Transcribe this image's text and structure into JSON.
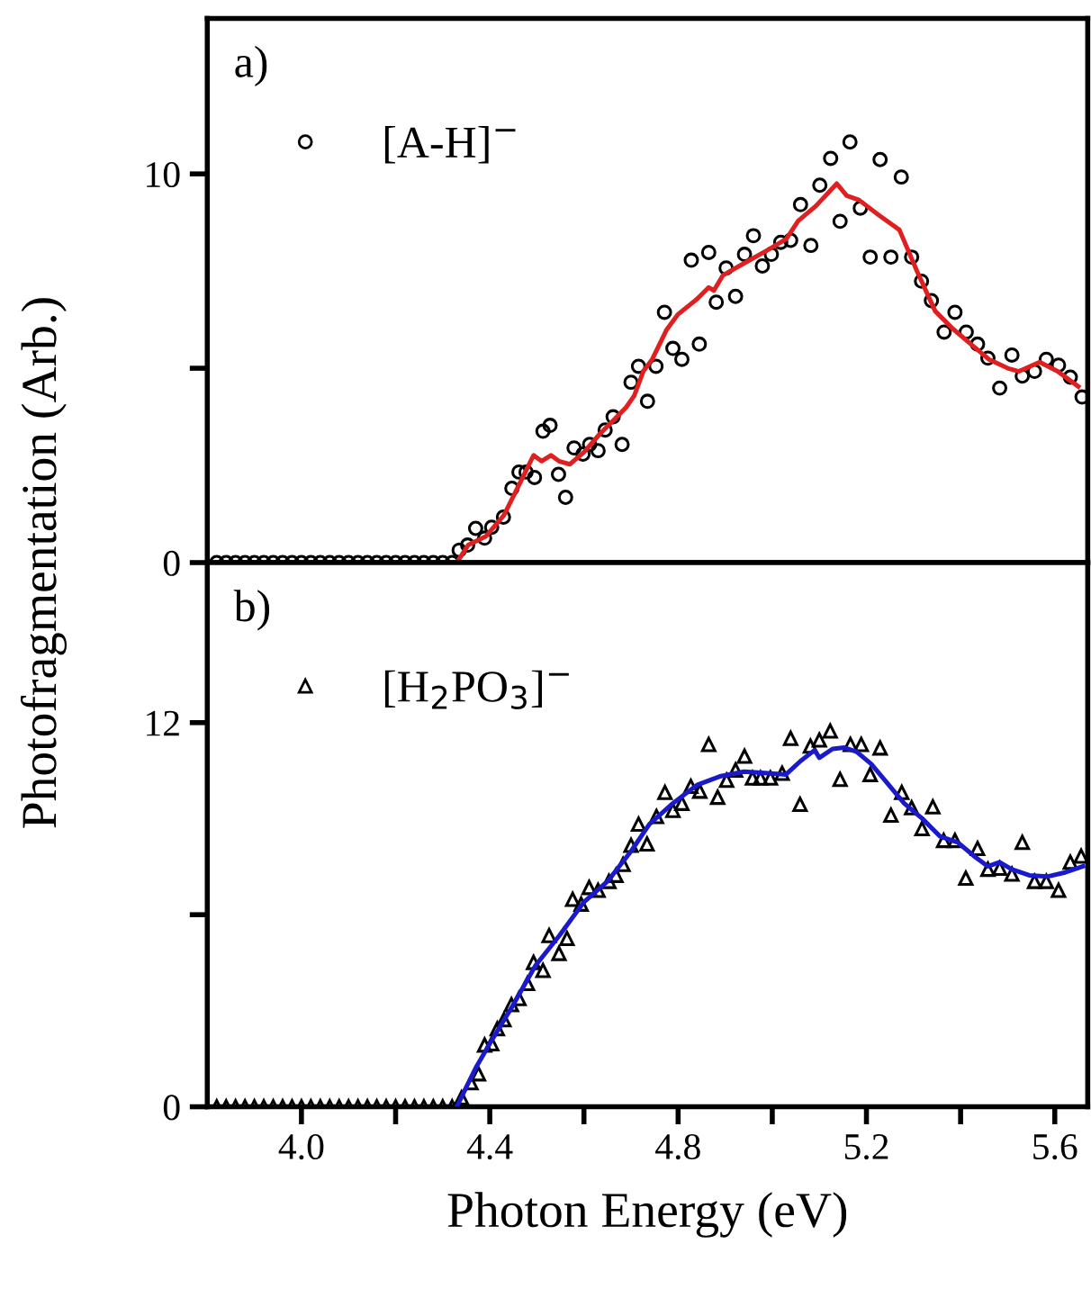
{
  "chart_data": [
    {
      "type": "scatter",
      "annotations": [
        "a)"
      ],
      "ylabel": "Photofragmentation (Arb.)",
      "xlim": [
        3.8,
        5.67
      ],
      "ylim": [
        0,
        14
      ],
      "xticks": [
        {
          "value": 4.0,
          "label": null
        },
        {
          "value": 4.2,
          "label": null
        },
        {
          "value": 4.4,
          "label": null
        },
        {
          "value": 4.6,
          "label": null
        },
        {
          "value": 4.8,
          "label": null
        },
        {
          "value": 5.0,
          "label": null
        },
        {
          "value": 5.2,
          "label": null
        },
        {
          "value": 5.4,
          "label": null
        },
        {
          "value": 5.6,
          "label": null
        }
      ],
      "yticks": [
        0,
        {
          "value": 5,
          "label": null
        },
        10
      ],
      "tick_labels": "y",
      "legend": "top left",
      "grid": false,
      "series": [
        {
          "name": "[A-H]$^{−}$",
          "marker": "circle",
          "color": "#000000",
          "x": [
            3.82,
            3.84,
            3.86,
            3.88,
            3.9,
            3.92,
            3.94,
            3.96,
            3.98,
            4.0,
            4.02,
            4.04,
            4.06,
            4.08,
            4.1,
            4.12,
            4.14,
            4.16,
            4.18,
            4.2,
            4.22,
            4.24,
            4.26,
            4.28,
            4.3,
            4.32,
            4.335,
            4.353,
            4.37,
            4.389,
            4.404,
            4.429,
            4.447,
            4.462,
            4.477,
            4.495,
            4.513,
            4.528,
            4.546,
            4.561,
            4.579,
            4.598,
            4.612,
            4.63,
            4.645,
            4.662,
            4.681,
            4.7,
            4.716,
            4.735,
            4.753,
            4.771,
            4.789,
            4.808,
            4.828,
            4.845,
            4.865,
            4.881,
            4.902,
            4.922,
            4.941,
            4.96,
            4.979,
            4.998,
            5.018,
            5.039,
            5.06,
            5.082,
            5.101,
            5.124,
            5.144,
            5.165,
            5.187,
            5.208,
            5.229,
            5.252,
            5.274,
            5.296,
            5.317,
            5.338,
            5.365,
            5.388,
            5.412,
            5.436,
            5.458,
            5.483,
            5.509,
            5.531,
            5.557,
            5.582,
            5.608,
            5.633,
            5.658
          ],
          "values": [
            0,
            0,
            0,
            0,
            0,
            0,
            0,
            0,
            0,
            0,
            0,
            0,
            0,
            0,
            0,
            0,
            0,
            0,
            0,
            0,
            0,
            0,
            0,
            0,
            0,
            0,
            0.32,
            0.45,
            0.88,
            0.63,
            0.91,
            1.17,
            1.91,
            2.33,
            2.33,
            2.19,
            3.38,
            3.53,
            2.27,
            1.68,
            2.95,
            2.79,
            3.04,
            2.88,
            3.41,
            3.75,
            3.04,
            4.64,
            5.05,
            4.15,
            5.05,
            6.44,
            5.51,
            5.23,
            7.78,
            5.62,
            7.98,
            6.7,
            7.58,
            6.85,
            7.93,
            8.41,
            7.63,
            7.93,
            8.24,
            8.29,
            9.21,
            8.16,
            9.71,
            10.4,
            8.78,
            10.82,
            9.12,
            7.86,
            10.37,
            7.86,
            9.92,
            7.86,
            7.24,
            6.74,
            5.93,
            6.44,
            5.93,
            5.62,
            5.26,
            4.49,
            5.34,
            4.8,
            4.92,
            5.23,
            5.08,
            4.77,
            4.26
          ]
        },
        {
          "type": "line",
          "color": "#e02020",
          "x": [
            4.33,
            4.354,
            4.392,
            4.43,
            4.465,
            4.493,
            4.51,
            4.53,
            4.547,
            4.57,
            4.6,
            4.633,
            4.665,
            4.69,
            4.707,
            4.726,
            4.745,
            4.776,
            4.8,
            4.84,
            4.865,
            4.876,
            4.895,
            4.94,
            4.99,
            5.03,
            5.055,
            5.093,
            5.137,
            5.158,
            5.184,
            5.225,
            5.27,
            5.308,
            5.346,
            5.384,
            5.422,
            5.46,
            5.5,
            5.524,
            5.568,
            5.606,
            5.65
          ],
          "values": [
            0.0,
            0.45,
            0.68,
            1.22,
            2.07,
            2.76,
            2.61,
            2.76,
            2.61,
            2.53,
            2.84,
            3.3,
            3.69,
            4.0,
            4.3,
            4.92,
            5.23,
            6.0,
            6.39,
            6.78,
            7.08,
            7.0,
            7.39,
            7.7,
            8.04,
            8.33,
            8.79,
            9.18,
            9.75,
            9.44,
            9.33,
            8.95,
            8.56,
            7.48,
            6.47,
            6.01,
            5.62,
            5.23,
            5.0,
            4.92,
            5.16,
            4.92,
            4.53
          ]
        }
      ]
    },
    {
      "type": "scatter",
      "annotations": [
        "b)"
      ],
      "xlabel": "Photon Energy (eV)",
      "xlim": [
        3.8,
        5.67
      ],
      "ylim": [
        0,
        17
      ],
      "xticks": [
        {
          "value": 4.0,
          "label": "4.0"
        },
        {
          "value": 4.2,
          "label": null
        },
        {
          "value": 4.4,
          "label": "4.4"
        },
        {
          "value": 4.6,
          "label": null
        },
        {
          "value": 4.8,
          "label": "4.8"
        },
        {
          "value": 5.0,
          "label": null
        },
        {
          "value": 5.2,
          "label": "5.2"
        },
        {
          "value": 5.4,
          "label": null
        },
        {
          "value": 5.6,
          "label": "5.6"
        }
      ],
      "yticks": [
        0,
        {
          "value": 6,
          "label": null
        },
        12
      ],
      "legend": "top left",
      "grid": false,
      "series": [
        {
          "name": "[H$_{2}$PO$_{3}$]$^{−}$",
          "marker": "triangle",
          "color": "#000000",
          "x": [
            3.82,
            3.84,
            3.86,
            3.88,
            3.9,
            3.92,
            3.94,
            3.96,
            3.98,
            4.0,
            4.02,
            4.04,
            4.06,
            4.08,
            4.1,
            4.12,
            4.14,
            4.16,
            4.18,
            4.2,
            4.22,
            4.24,
            4.26,
            4.28,
            4.3,
            4.32,
            4.34,
            4.36,
            4.376,
            4.389,
            4.404,
            4.416,
            4.43,
            4.446,
            4.462,
            4.48,
            4.493,
            4.513,
            4.526,
            4.547,
            4.564,
            4.576,
            4.594,
            4.611,
            4.63,
            4.653,
            4.668,
            4.683,
            4.7,
            4.716,
            4.734,
            4.754,
            4.772,
            4.789,
            4.808,
            4.827,
            4.846,
            4.865,
            4.884,
            4.903,
            4.922,
            4.941,
            4.958,
            4.975,
            4.996,
            5.021,
            5.039,
            5.059,
            5.081,
            5.1,
            5.123,
            5.144,
            5.166,
            5.189,
            5.208,
            5.229,
            5.252,
            5.275,
            5.296,
            5.318,
            5.341,
            5.364,
            5.388,
            5.411,
            5.436,
            5.458,
            5.483,
            5.509,
            5.531,
            5.557,
            5.582,
            5.608,
            5.633,
            5.656
          ],
          "values": [
            0,
            0,
            0,
            0,
            0,
            0,
            0,
            0,
            0,
            0,
            0,
            0,
            0,
            0,
            0,
            0,
            0,
            0,
            0,
            0,
            0,
            0,
            0,
            0,
            0,
            0,
            0.28,
            0.75,
            1.03,
            1.93,
            1.97,
            2.44,
            2.72,
            3.19,
            3.38,
            3.85,
            4.51,
            4.26,
            5.35,
            4.79,
            5.26,
            6.48,
            6.33,
            6.85,
            6.76,
            7.04,
            7.23,
            7.57,
            8.17,
            8.83,
            8.21,
            9.07,
            9.82,
            9.26,
            9.48,
            10.01,
            9.86,
            11.32,
            9.67,
            10.2,
            10.52,
            10.95,
            10.27,
            10.27,
            10.27,
            10.42,
            11.51,
            9.45,
            11.27,
            11.46,
            11.74,
            10.23,
            11.32,
            11.32,
            10.38,
            11.21,
            9.11,
            9.82,
            9.34,
            8.69,
            9.37,
            8.32,
            8.32,
            7.14,
            8.07,
            7.42,
            7.45,
            7.27,
            8.26,
            7.04,
            7.04,
            6.76,
            7.64,
            7.83
          ]
        },
        {
          "type": "line",
          "color": "#1a1acc",
          "x": [
            4.33,
            4.37,
            4.401,
            4.446,
            4.497,
            4.548,
            4.599,
            4.65,
            4.7,
            4.739,
            4.789,
            4.84,
            4.891,
            4.94,
            4.991,
            5.029,
            5.06,
            5.09,
            5.1,
            5.128,
            5.153,
            5.179,
            5.21,
            5.242,
            5.28,
            5.318,
            5.356,
            5.394,
            5.432,
            5.458,
            5.483,
            5.508,
            5.546,
            5.584,
            5.622,
            5.66
          ],
          "values": [
            0.0,
            1.21,
            2.0,
            3.09,
            4.41,
            5.35,
            6.38,
            7.04,
            7.98,
            8.83,
            9.48,
            10.05,
            10.33,
            10.47,
            10.42,
            10.38,
            10.8,
            11.14,
            10.9,
            11.18,
            11.22,
            11.09,
            10.71,
            10.15,
            9.48,
            9.01,
            8.45,
            8.26,
            7.79,
            7.51,
            7.64,
            7.42,
            7.23,
            7.19,
            7.32,
            7.51
          ]
        }
      ]
    }
  ]
}
